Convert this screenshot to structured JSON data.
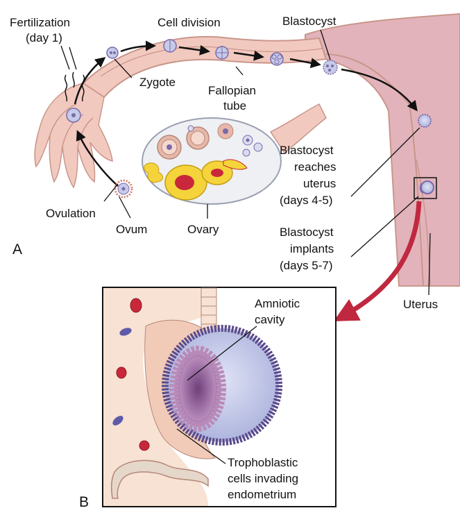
{
  "panel_a": {
    "letter": "A",
    "labels": {
      "fertilization_1": "Fertilization",
      "fertilization_2": "(day 1)",
      "cell_division": "Cell division",
      "blastocyst": "Blastocyst",
      "zygote": "Zygote",
      "fallopian_1": "Fallopian",
      "fallopian_2": "tube",
      "ovulation": "Ovulation",
      "ovum": "Ovum",
      "ovary": "Ovary",
      "reaches_1": "Blastocyst",
      "reaches_2": "reaches",
      "reaches_3": "uterus",
      "reaches_4": "(days 4-5)",
      "implants_1": "Blastocyst",
      "implants_2": "implants",
      "implants_3": "(days 5-7)",
      "uterus": "Uterus"
    }
  },
  "panel_b": {
    "letter": "B",
    "labels": {
      "amniotic_1": "Amniotic",
      "amniotic_2": "cavity",
      "tropho_1": "Trophoblastic",
      "tropho_2": "cells invading",
      "tropho_3": "endometrium"
    }
  },
  "colors": {
    "tube_fill": "#f2c9bf",
    "tube_stroke": "#c9968a",
    "uterus_fill": "#e2b3bb",
    "ovary_fill": "#eef0f4",
    "follicle_yellow": "#f4d43a",
    "corpus_red": "#c8283a",
    "blastocyst_fill": "#c5cbe8",
    "cell_purple": "#7b6aa8",
    "curved_arrow": "#c0283f",
    "endometrium": "#f7e2d3"
  }
}
